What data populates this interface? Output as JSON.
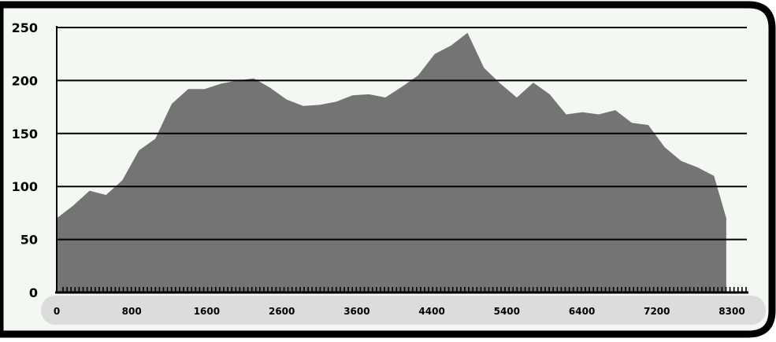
{
  "chart_data": {
    "type": "area",
    "title": "",
    "xlabel": "",
    "ylabel": "",
    "xlim": [
      0,
      8400
    ],
    "ylim": [
      0,
      250
    ],
    "y_ticks": [
      0,
      50,
      100,
      150,
      200,
      250
    ],
    "y_tick_labels": [
      "0",
      "50",
      "100",
      "150",
      "200",
      "250"
    ],
    "x_tick_labels": [
      "0",
      "800",
      "1600",
      "2600",
      "3600",
      "4400",
      "5400",
      "6400",
      "7200",
      "8300"
    ],
    "grid": "horizontal",
    "series": [
      {
        "x": [
          0,
          200,
          400,
          600,
          800,
          1000,
          1200,
          1400,
          1600,
          1800,
          2000,
          2200,
          2400,
          2600,
          2800,
          3000,
          3200,
          3400,
          3600,
          3800,
          4000,
          4200,
          4400,
          4600,
          4800,
          5000,
          5200,
          5400,
          5600,
          5800,
          6000,
          6200,
          6400,
          6600,
          6800,
          7000,
          7200,
          7400,
          7600,
          7800,
          8000,
          8150
        ],
        "values": [
          70,
          82,
          96,
          92,
          106,
          134,
          145,
          178,
          192,
          192,
          197,
          200,
          202,
          193,
          182,
          176,
          177,
          180,
          186,
          187,
          184,
          194,
          205,
          225,
          233,
          245,
          212,
          197,
          184,
          198,
          187,
          168,
          170,
          168,
          172,
          160,
          158,
          137,
          124,
          118,
          110,
          70
        ]
      }
    ]
  },
  "style": {
    "fill_color": "#747474",
    "frame_color": "#000000",
    "background_color": "#f3f8f2",
    "tick_band_color": "#dcdcdc",
    "gridline_color": "#000000"
  }
}
